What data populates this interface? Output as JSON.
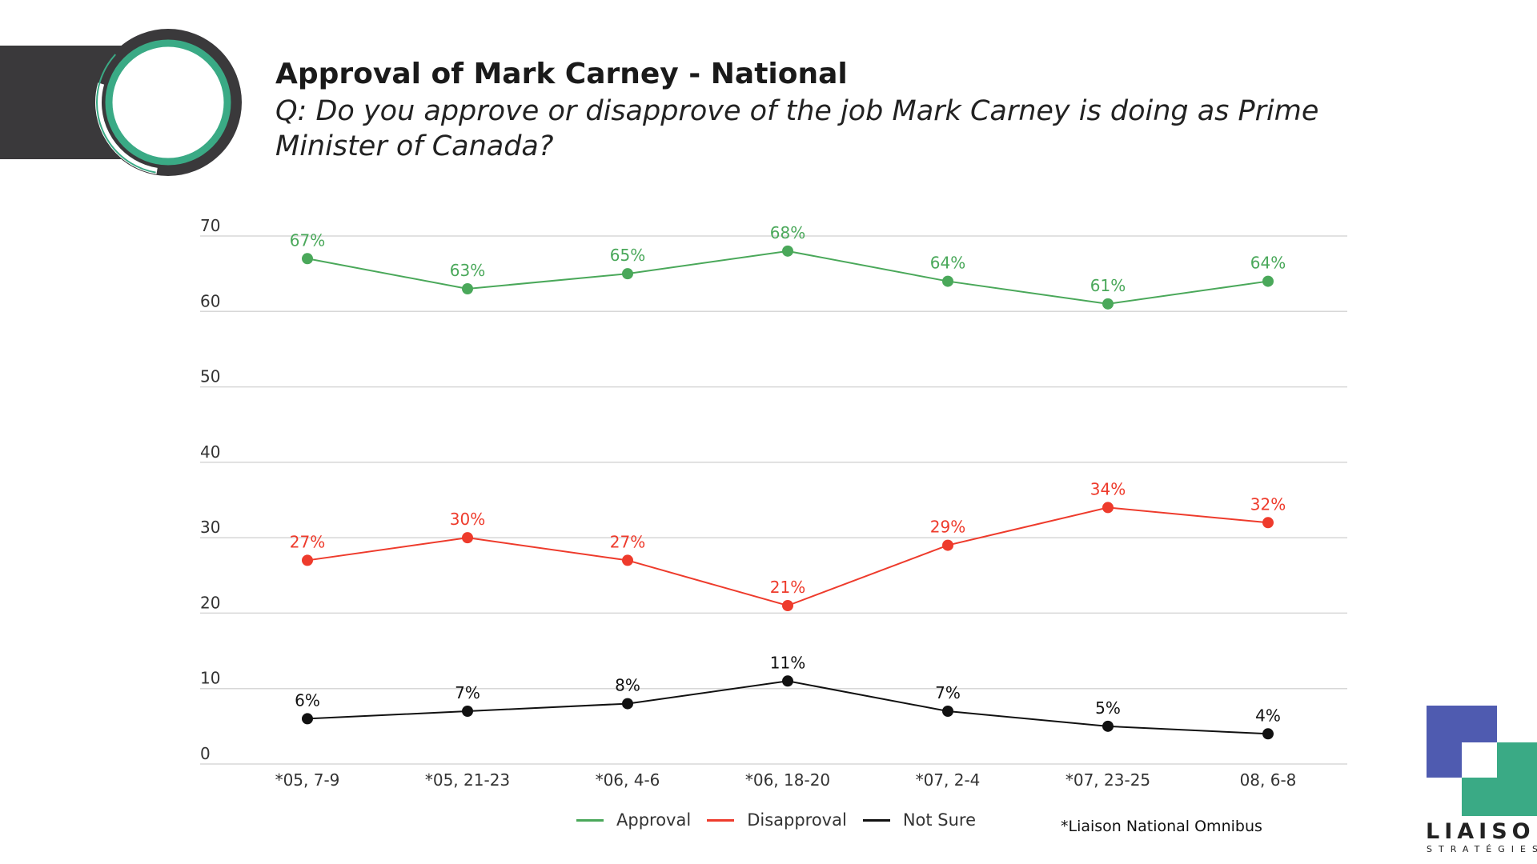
{
  "header": {
    "title": "Approval of Mark Carney - National",
    "subtitle": "Q: Do you approve or disapprove of the job Mark Carney is doing as Prime Minister of Canada?"
  },
  "footnote": "*Liaison National Omnibus",
  "logo": {
    "word": "LIAISON",
    "sub": "STRATÉGIES",
    "colors": [
      "#4f5bb0",
      "#3aaa85"
    ]
  },
  "chart_data": {
    "type": "line",
    "title": "",
    "xlabel": "",
    "ylabel": "",
    "ylim": [
      0,
      70
    ],
    "yticks": [
      0,
      10,
      20,
      30,
      40,
      50,
      60,
      70
    ],
    "grid": true,
    "legend_position": "bottom",
    "categories": [
      "*05, 7-9",
      "*05, 21-23",
      "*06, 4-6",
      "*06, 18-20",
      "*07, 2-4",
      "*07, 23-25",
      "08, 6-8"
    ],
    "series": [
      {
        "name": "Approval",
        "color": "#4aa85a",
        "values": [
          67,
          63,
          65,
          68,
          64,
          61,
          64
        ],
        "labels": [
          "67%",
          "63%",
          "65%",
          "68%",
          "64%",
          "61%",
          "64%"
        ]
      },
      {
        "name": "Disapproval",
        "color": "#ee3b2c",
        "values": [
          27,
          30,
          27,
          21,
          29,
          34,
          32
        ],
        "labels": [
          "27%",
          "30%",
          "27%",
          "21%",
          "29%",
          "34%",
          "32%"
        ]
      },
      {
        "name": "Not Sure",
        "color": "#111111",
        "values": [
          6,
          7,
          8,
          11,
          7,
          5,
          4
        ],
        "labels": [
          "6%",
          "7%",
          "8%",
          "11%",
          "7%",
          "5%",
          "4%"
        ]
      }
    ]
  }
}
